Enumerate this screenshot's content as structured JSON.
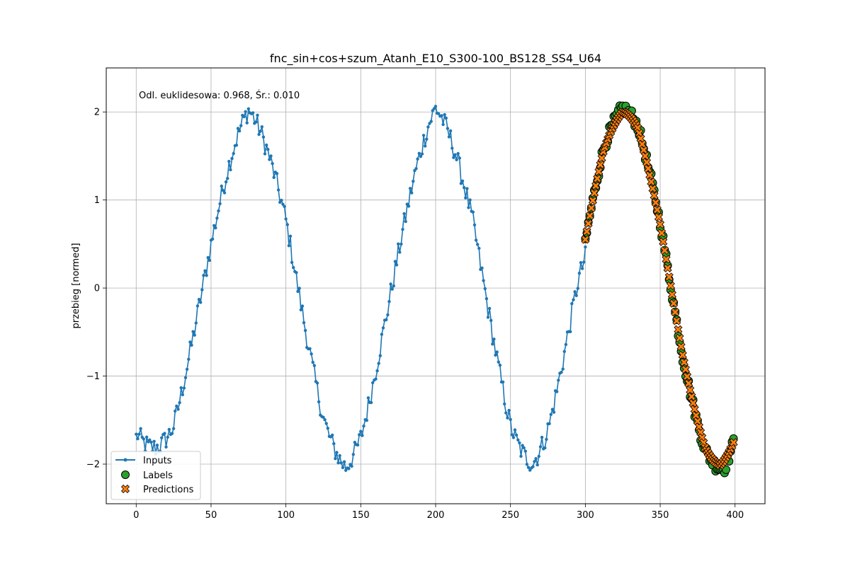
{
  "chart_data": {
    "type": "line",
    "title": "fnc_sin+cos+szum_Atanh_E10_S300-100_BS128_SS4_U64",
    "xlabel": "",
    "ylabel": "przebieg [normed]",
    "annotation": "Odl. euklidesowa: 0.968, Śr.: 0.010",
    "xlim": [
      -20,
      420
    ],
    "ylim": [
      -2.45,
      2.5
    ],
    "xticks": [
      0,
      50,
      100,
      150,
      200,
      250,
      300,
      350,
      400
    ],
    "yticks": [
      -2,
      -1,
      0,
      1,
      2
    ],
    "ytick_labels": [
      "−2",
      "−1",
      "0",
      "1",
      "2"
    ],
    "grid": true,
    "legend_position": "lower-left",
    "signal_model": {
      "description": "cosine-shaped wave, period ~125 samples",
      "amplitude": 2.0,
      "period": 125,
      "peak_at": 75,
      "noise_amplitude": 0.12
    },
    "series": [
      {
        "name": "Inputs",
        "kind": "line-with-dots",
        "color": "#1f77b4",
        "x_start": 0,
        "x_end": 300,
        "key_points": [
          [
            0,
            -1.66
          ],
          [
            25,
            -1.5
          ],
          [
            50,
            0.35
          ],
          [
            75,
            2.05
          ],
          [
            100,
            0.95
          ],
          [
            125,
            -1.3
          ],
          [
            140,
            -2.1
          ],
          [
            150,
            -1.8
          ],
          [
            175,
            0.1
          ],
          [
            200,
            2.1
          ],
          [
            225,
            0.9
          ],
          [
            250,
            -1.5
          ],
          [
            265,
            -2.0
          ],
          [
            275,
            -1.6
          ],
          [
            295,
            0.0
          ],
          [
            299,
            0.03
          ]
        ]
      },
      {
        "name": "Labels",
        "kind": "scatter",
        "marker": "circle",
        "color": "#2ca02c",
        "x_start": 300,
        "x_end": 399,
        "key_points": [
          [
            300,
            0.43
          ],
          [
            312,
            1.55
          ],
          [
            325,
            2.1
          ],
          [
            335,
            1.95
          ],
          [
            350,
            0.9
          ],
          [
            365,
            -0.7
          ],
          [
            380,
            -1.8
          ],
          [
            390,
            -2.12
          ],
          [
            393,
            -2.18
          ],
          [
            399,
            -1.85
          ]
        ]
      },
      {
        "name": "Predictions",
        "kind": "scatter",
        "marker": "X",
        "color": "#ff7f0e",
        "x_start": 300,
        "x_end": 399,
        "key_points": [
          [
            300,
            0.47
          ],
          [
            312,
            1.5
          ],
          [
            325,
            2.0
          ],
          [
            335,
            1.9
          ],
          [
            350,
            0.85
          ],
          [
            365,
            -0.65
          ],
          [
            380,
            -1.75
          ],
          [
            390,
            -2.05
          ],
          [
            399,
            -1.85
          ]
        ]
      }
    ]
  }
}
